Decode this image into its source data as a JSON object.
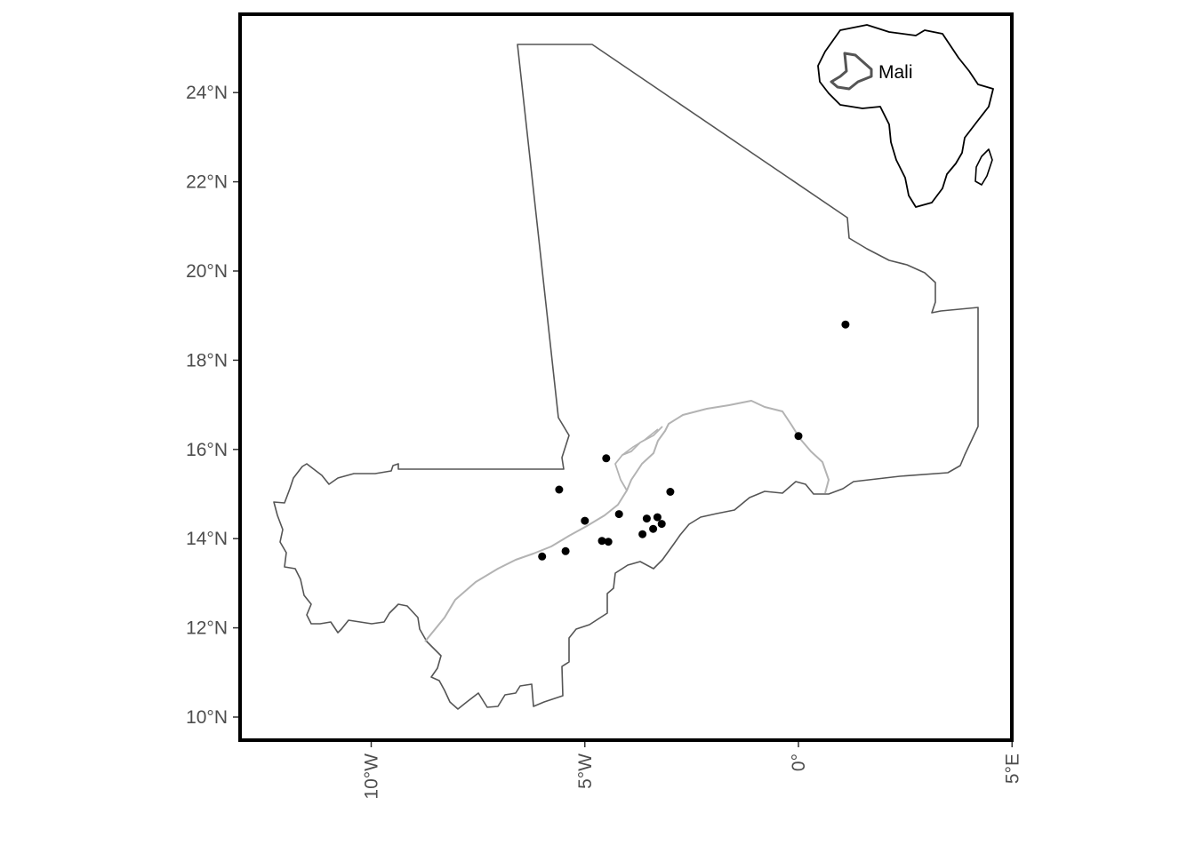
{
  "colors": {
    "panel_border": "#000000",
    "country_outline": "#555555",
    "river": "#b3b3b3",
    "points": "#000000",
    "tick_text": "#4d4d4d",
    "inset_outline": "#000000"
  },
  "axes": {
    "y_ticks": [
      {
        "lat": 10,
        "label": "10°N"
      },
      {
        "lat": 12,
        "label": "12°N"
      },
      {
        "lat": 14,
        "label": "14°N"
      },
      {
        "lat": 16,
        "label": "16°N"
      },
      {
        "lat": 18,
        "label": "18°N"
      },
      {
        "lat": 20,
        "label": "20°N"
      },
      {
        "lat": 22,
        "label": "22°N"
      },
      {
        "lat": 24,
        "label": "24°N"
      }
    ],
    "x_ticks": [
      {
        "lon": -10,
        "label": "10°W"
      },
      {
        "lon": -5,
        "label": "5°W"
      },
      {
        "lon": 0,
        "label": "0°"
      },
      {
        "lon": 5,
        "label": "5°E"
      }
    ]
  },
  "inset": {
    "label": "Mali",
    "region": "Africa"
  },
  "sample_points": [
    {
      "lon": 1.1,
      "lat": 18.8
    },
    {
      "lon": 0.0,
      "lat": 16.3
    },
    {
      "lon": -4.5,
      "lat": 15.8
    },
    {
      "lon": -5.6,
      "lat": 15.1
    },
    {
      "lon": -3.0,
      "lat": 15.05
    },
    {
      "lon": -4.2,
      "lat": 14.55
    },
    {
      "lon": -5.0,
      "lat": 14.4
    },
    {
      "lon": -3.55,
      "lat": 14.45
    },
    {
      "lon": -3.3,
      "lat": 14.48
    },
    {
      "lon": -3.2,
      "lat": 14.33
    },
    {
      "lon": -3.4,
      "lat": 14.22
    },
    {
      "lon": -3.65,
      "lat": 14.1
    },
    {
      "lon": -4.6,
      "lat": 13.95
    },
    {
      "lon": -4.45,
      "lat": 13.93
    },
    {
      "lon": -5.45,
      "lat": 13.72
    },
    {
      "lon": -6.0,
      "lat": 13.6
    }
  ]
}
